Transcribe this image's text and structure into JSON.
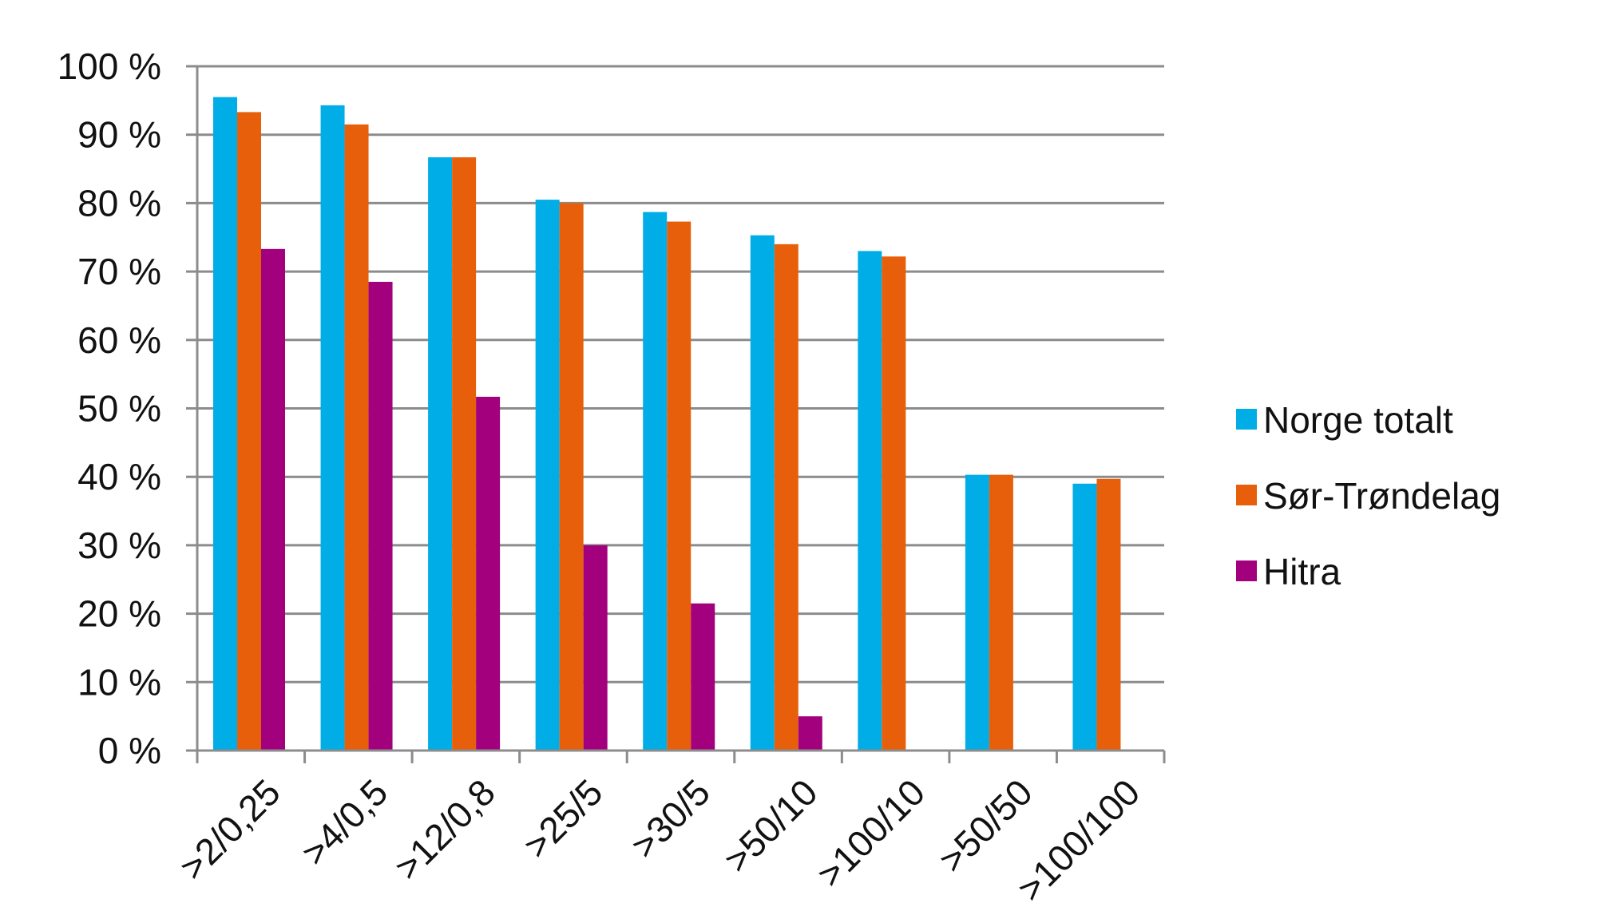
{
  "chart_data": {
    "type": "bar",
    "categories": [
      ">2/0,25",
      ">4/0,5",
      ">12/0,8",
      ">25/5",
      ">30/5",
      ">50/10",
      ">100/10",
      ">50/50",
      ">100/100"
    ],
    "series": [
      {
        "name": "Norge totalt",
        "color": "#00ADE6",
        "values": [
          95.5,
          94.3,
          86.7,
          80.5,
          78.7,
          75.3,
          73.0,
          40.3,
          39.0
        ]
      },
      {
        "name": "Sør-Trøndelag",
        "color": "#E75F0A",
        "values": [
          93.3,
          91.5,
          86.7,
          80.0,
          77.3,
          74.0,
          72.2,
          40.3,
          39.7
        ]
      },
      {
        "name": "Hitra",
        "color": "#A3007E",
        "values": [
          73.3,
          68.5,
          51.7,
          30.0,
          21.5,
          5.0,
          null,
          null,
          null
        ]
      }
    ],
    "yticks": [
      "0 %",
      "10 %",
      "20 %",
      "30 %",
      "40 %",
      "50 %",
      "60 %",
      "70 %",
      "80 %",
      "90 %",
      "100 %"
    ],
    "ylim": [
      0,
      100
    ],
    "grid": true,
    "legend_position": "right",
    "title": "",
    "xlabel": "",
    "ylabel": ""
  }
}
